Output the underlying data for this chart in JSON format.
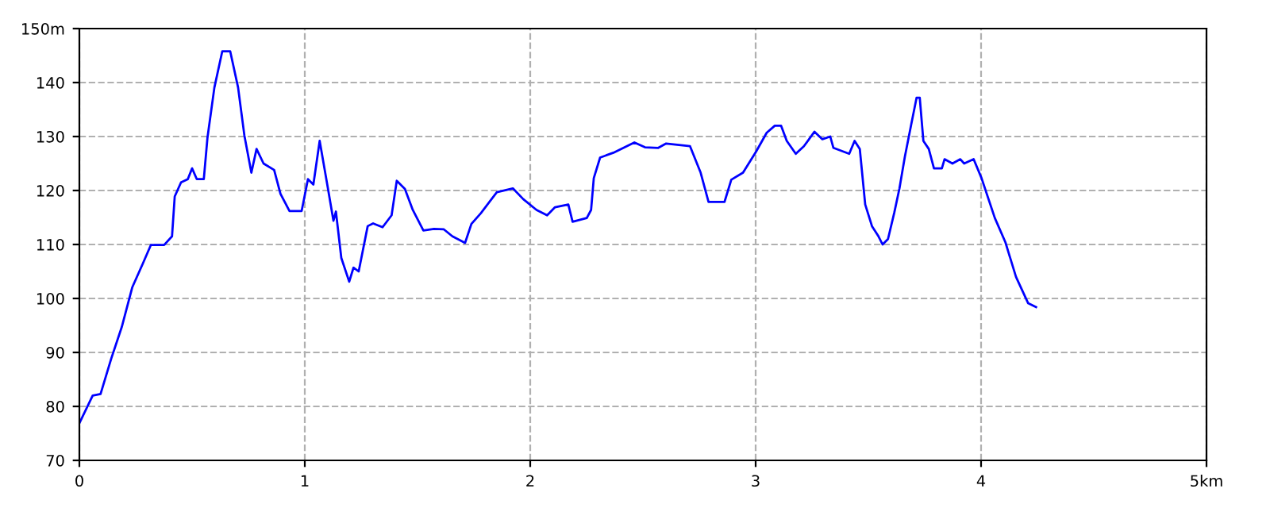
{
  "chart_data": {
    "type": "line",
    "xlim": [
      0,
      5
    ],
    "ylim": [
      70,
      150
    ],
    "xticks": [
      0,
      1,
      2,
      3,
      4,
      {
        "value": 5,
        "label": "5km"
      }
    ],
    "yticks": [
      70,
      80,
      90,
      100,
      110,
      120,
      130,
      140,
      {
        "value": 150,
        "label": "150m"
      }
    ],
    "grid": true,
    "marker": "none",
    "line_style": "solid",
    "series": [
      {
        "color": "#0000ff",
        "x": [
          0,
          0.059,
          0.094,
          0.141,
          0.188,
          0.235,
          0.282,
          0.317,
          0.376,
          0.411,
          0.423,
          0.451,
          0.481,
          0.5,
          0.521,
          0.552,
          0.568,
          0.599,
          0.634,
          0.669,
          0.704,
          0.732,
          0.763,
          0.786,
          0.817,
          0.864,
          0.892,
          0.932,
          0.986,
          1.014,
          1.038,
          1.066,
          1.103,
          1.127,
          1.138,
          1.162,
          1.197,
          1.216,
          1.239,
          1.279,
          1.303,
          1.345,
          1.385,
          1.408,
          1.444,
          1.479,
          1.526,
          1.573,
          1.617,
          1.655,
          1.711,
          1.739,
          1.781,
          1.852,
          1.923,
          1.969,
          2.028,
          2.075,
          2.11,
          2.169,
          2.188,
          2.251,
          2.27,
          2.282,
          2.31,
          2.369,
          2.462,
          2.509,
          2.568,
          2.603,
          2.709,
          2.756,
          2.791,
          2.862,
          2.892,
          2.944,
          3.002,
          3.049,
          3.085,
          3.113,
          3.138,
          3.178,
          3.214,
          3.261,
          3.296,
          3.331,
          3.345,
          3.415,
          3.439,
          3.462,
          3.486,
          3.516,
          3.545,
          3.563,
          3.587,
          3.615,
          3.638,
          3.662,
          3.69,
          3.714,
          3.728,
          3.744,
          3.768,
          3.791,
          3.826,
          3.838,
          3.873,
          3.908,
          3.925,
          3.967,
          4.002,
          4.061,
          4.108,
          4.155,
          4.209,
          4.244
        ],
        "values": [
          76.9,
          82.0,
          82.3,
          88.8,
          94.7,
          102.1,
          106.5,
          109.9,
          109.9,
          111.5,
          118.9,
          121.5,
          122.1,
          124.1,
          122.1,
          122.1,
          129.7,
          139.1,
          145.8,
          145.8,
          139.1,
          130.2,
          123.3,
          127.7,
          125.0,
          123.8,
          119.4,
          116.2,
          116.2,
          122.1,
          121.1,
          129.2,
          120.3,
          114.4,
          116.1,
          107.5,
          103.1,
          105.7,
          105.0,
          113.4,
          113.9,
          113.2,
          115.4,
          121.8,
          120.3,
          116.4,
          112.6,
          112.9,
          112.8,
          111.5,
          110.3,
          113.8,
          115.8,
          119.7,
          120.4,
          118.4,
          116.4,
          115.4,
          116.9,
          117.4,
          114.2,
          114.9,
          116.4,
          122.3,
          126.1,
          127.0,
          128.9,
          128.0,
          127.9,
          128.7,
          128.2,
          123.3,
          117.9,
          117.9,
          122.0,
          123.3,
          127.2,
          130.7,
          132.0,
          132.0,
          129.2,
          126.8,
          128.2,
          130.9,
          129.5,
          130.0,
          127.9,
          126.8,
          129.2,
          127.7,
          117.4,
          113.4,
          111.5,
          110.0,
          111.0,
          115.9,
          120.4,
          126.3,
          132.2,
          137.2,
          137.2,
          129.2,
          127.7,
          124.1,
          124.1,
          125.8,
          125.0,
          125.8,
          125.0,
          125.8,
          122.3,
          114.9,
          110.4,
          104.0,
          99.1,
          98.4
        ]
      }
    ]
  }
}
